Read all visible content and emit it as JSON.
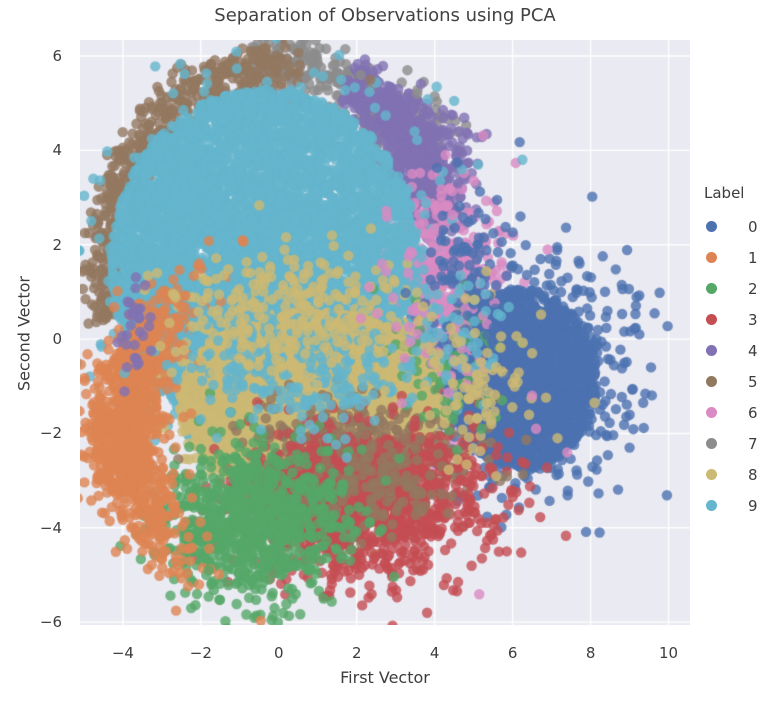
{
  "figure": {
    "title": "Separation of Observations using PCA"
  },
  "axes": {
    "xlabel": "First Vector",
    "ylabel": "Second Vector"
  },
  "legend": {
    "title": "Label",
    "entries": [
      "0",
      "1",
      "2",
      "3",
      "4",
      "5",
      "6",
      "7",
      "8",
      "9"
    ]
  },
  "style": {
    "plot_bg": "#EAEAF2",
    "grid_color": "#FFFFFF",
    "text_color": "#3D3D3D",
    "point_alpha": 0.8,
    "point_radius": 5.2
  },
  "chart_data": {
    "type": "scatter",
    "title": "Separation of Observations using PCA",
    "xlabel": "First Vector",
    "ylabel": "Second Vector",
    "legend_title": "Label",
    "legend_position": "right",
    "grid": true,
    "xlim": [
      -5.1,
      10.55
    ],
    "ylim": [
      -6.06,
      6.34
    ],
    "xticks": [
      -4,
      -2,
      0,
      2,
      4,
      6,
      8,
      10
    ],
    "yticks": [
      -6,
      -4,
      -2,
      0,
      2,
      4,
      6
    ],
    "palette": {
      "0": "#4C72B0",
      "1": "#DD8452",
      "2": "#55A868",
      "3": "#C44E52",
      "4": "#8172B3",
      "5": "#937860",
      "6": "#DA8BC3",
      "7": "#8C8C8C",
      "8": "#CCB974",
      "9": "#64B5CD"
    },
    "seed": 1234,
    "clusters": [
      {
        "label": "7",
        "kind": "arc",
        "cx": -0.3,
        "cy": 1.6,
        "r": 4.3,
        "jr": 0.3,
        "a0": 40,
        "a1": 95,
        "n": 260
      },
      {
        "label": "7",
        "kind": "gauss",
        "cx": 3.4,
        "cy": 4.35,
        "sx": 0.55,
        "sy": 0.5,
        "n": 120
      },
      {
        "label": "5",
        "kind": "arc",
        "cx": -0.3,
        "cy": 1.6,
        "r": 4.15,
        "jr": 0.28,
        "a0": 78,
        "a1": 196,
        "n": 500
      },
      {
        "label": "4",
        "kind": "arc",
        "cx": -0.3,
        "cy": 1.6,
        "r": 4.45,
        "jr": 0.35,
        "a0": 8,
        "a1": 62,
        "n": 380
      },
      {
        "label": "4",
        "kind": "gauss",
        "cx": 3.9,
        "cy": 3.6,
        "sx": 0.55,
        "sy": 0.7,
        "n": 260
      },
      {
        "label": "6",
        "kind": "gauss",
        "cx": 4.1,
        "cy": 0.55,
        "sx": 0.8,
        "sy": 1.2,
        "n": 650
      },
      {
        "label": "6",
        "kind": "gauss",
        "cx": 4.6,
        "cy": -0.4,
        "sx": 1.05,
        "sy": 1.35,
        "n": 170
      },
      {
        "label": "0",
        "kind": "disk",
        "cx": 6.25,
        "cy": -0.85,
        "rx": 1.9,
        "ry": 1.9,
        "n": 1700
      },
      {
        "label": "0",
        "kind": "gauss",
        "cx": 6.15,
        "cy": -0.8,
        "sx": 1.3,
        "sy": 1.25,
        "n": 800
      },
      {
        "label": "9",
        "kind": "disk",
        "cx": -0.35,
        "cy": 1.6,
        "rx": 3.95,
        "ry": 3.7,
        "n": 5000
      },
      {
        "label": "9",
        "kind": "gauss",
        "cx": -0.35,
        "cy": 1.55,
        "sx": 1.8,
        "sy": 1.6,
        "n": 1300
      },
      {
        "label": "8",
        "kind": "disk",
        "cx": 0.8,
        "cy": -1.35,
        "rx": 3.35,
        "ry": 1.95,
        "n": 3300
      },
      {
        "label": "8",
        "kind": "gauss",
        "cx": 0.9,
        "cy": -1.3,
        "sx": 1.7,
        "sy": 1.0,
        "n": 1100
      },
      {
        "label": "5",
        "kind": "gauss",
        "cx": 2.0,
        "cy": -2.5,
        "sx": 1.3,
        "sy": 0.62,
        "n": 520
      },
      {
        "label": "3",
        "kind": "gauss",
        "cx": 1.9,
        "cy": -3.5,
        "sx": 1.4,
        "sy": 0.8,
        "n": 950
      },
      {
        "label": "3",
        "kind": "gauss",
        "cx": 4.3,
        "cy": -3.3,
        "sx": 0.95,
        "sy": 0.75,
        "n": 150
      },
      {
        "label": "5",
        "kind": "gauss",
        "cx": 2.6,
        "cy": -3.0,
        "sx": 1.0,
        "sy": 0.55,
        "n": 130
      },
      {
        "label": "2",
        "kind": "gauss",
        "cx": -0.6,
        "cy": -3.85,
        "sx": 1.15,
        "sy": 0.78,
        "n": 900
      },
      {
        "label": "2",
        "kind": "gauss",
        "cx": 4.3,
        "cy": -0.5,
        "sx": 0.7,
        "sy": 0.9,
        "n": 60
      },
      {
        "label": "1",
        "kind": "gauss",
        "cx": -3.95,
        "cy": -1.9,
        "sx": 0.5,
        "sy": 1.45,
        "curve": 0.32,
        "n": 950
      },
      {
        "label": "9",
        "kind": "gauss",
        "cx": 0.8,
        "cy": -0.45,
        "sx": 1.6,
        "sy": 0.75,
        "n": 320
      },
      {
        "label": "8",
        "kind": "gauss",
        "cx": 0.3,
        "cy": 0.55,
        "sx": 1.5,
        "sy": 0.65,
        "n": 240
      },
      {
        "label": "6",
        "kind": "gauss",
        "cx": 4.2,
        "cy": 0.8,
        "sx": 0.7,
        "sy": 1.0,
        "n": 110
      },
      {
        "label": "0",
        "kind": "gauss",
        "cx": 5.0,
        "cy": 1.2,
        "sx": 0.7,
        "sy": 1.0,
        "n": 90
      },
      {
        "label": "9",
        "kind": "gauss",
        "cx": 4.6,
        "cy": 0.2,
        "sx": 0.5,
        "sy": 0.8,
        "n": 45
      },
      {
        "label": "8",
        "kind": "gauss",
        "cx": 4.9,
        "cy": -0.9,
        "sx": 0.7,
        "sy": 0.9,
        "n": 80
      },
      {
        "label": "4",
        "kind": "gauss",
        "cx": -3.6,
        "cy": 0.2,
        "sx": 0.25,
        "sy": 0.5,
        "n": 30
      }
    ],
    "outliers": [
      [
        0.9,
        5.65,
        "9"
      ],
      [
        1.6,
        5.5,
        "9"
      ],
      [
        -0.3,
        5.45,
        "9"
      ],
      [
        2.5,
        5.44,
        "9"
      ],
      [
        4.05,
        5.35,
        "9"
      ],
      [
        4.5,
        5.05,
        "9"
      ],
      [
        5.9,
        0.68,
        "9"
      ],
      [
        4.95,
        -0.15,
        "9"
      ],
      [
        3.3,
        5.7,
        "7"
      ],
      [
        2.1,
        5.6,
        "7"
      ],
      [
        3.55,
        5.2,
        "7"
      ],
      [
        2.35,
        5.5,
        "5"
      ],
      [
        3.25,
        5.1,
        "4"
      ],
      [
        3.7,
        4.9,
        "4"
      ],
      [
        4.6,
        3.3,
        "4"
      ],
      [
        9.55,
        -0.6,
        "0"
      ],
      [
        9.35,
        -1.35,
        "0"
      ],
      [
        9.25,
        0.1,
        "0"
      ],
      [
        9.0,
        -2.3,
        "0"
      ],
      [
        8.8,
        1.15,
        "0"
      ],
      [
        6.2,
        2.6,
        "0"
      ],
      [
        5.6,
        2.95,
        "0"
      ],
      [
        6.9,
        1.9,
        "6"
      ],
      [
        6.6,
        -1.9,
        "6"
      ],
      [
        7.4,
        -2.4,
        "6"
      ],
      [
        6.5,
        -1.2,
        "6"
      ],
      [
        8.1,
        -1.35,
        "8"
      ],
      [
        7.15,
        -2.1,
        "8"
      ],
      [
        6.5,
        -0.3,
        "8"
      ],
      [
        5.85,
        -4.5,
        "3"
      ],
      [
        4.6,
        -5.15,
        "3"
      ],
      [
        2.9,
        -5.35,
        "3"
      ],
      [
        3.45,
        -4.9,
        "3"
      ],
      [
        5.2,
        -3.9,
        "3"
      ],
      [
        6.0,
        -3.35,
        "3"
      ],
      [
        0.35,
        -5.5,
        "2"
      ],
      [
        -0.6,
        -5.3,
        "2"
      ],
      [
        1.15,
        -5.5,
        "2"
      ],
      [
        -1.8,
        -4.9,
        "2"
      ],
      [
        5.2,
        -1.9,
        "2"
      ],
      [
        -2.35,
        -4.45,
        "1"
      ]
    ]
  }
}
